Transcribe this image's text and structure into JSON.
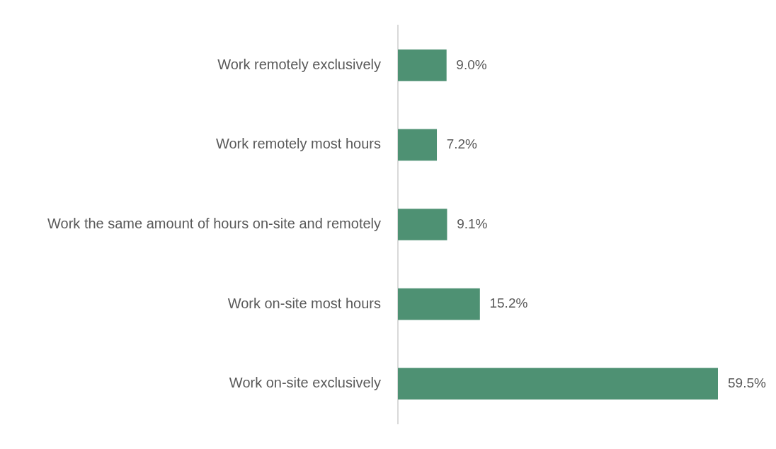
{
  "chart_data": {
    "type": "bar",
    "orientation": "horizontal",
    "categories": [
      "Work remotely exclusively",
      "Work remotely most hours",
      "Work the same amount of hours on-site and remotely",
      "Work on-site most hours",
      "Work on-site exclusively"
    ],
    "values": [
      9.0,
      7.2,
      9.1,
      15.2,
      59.5
    ],
    "value_labels": [
      "9.0%",
      "7.2%",
      "9.1%",
      "15.2%",
      "59.5%"
    ],
    "color": "#4e9173",
    "legend": false
  }
}
